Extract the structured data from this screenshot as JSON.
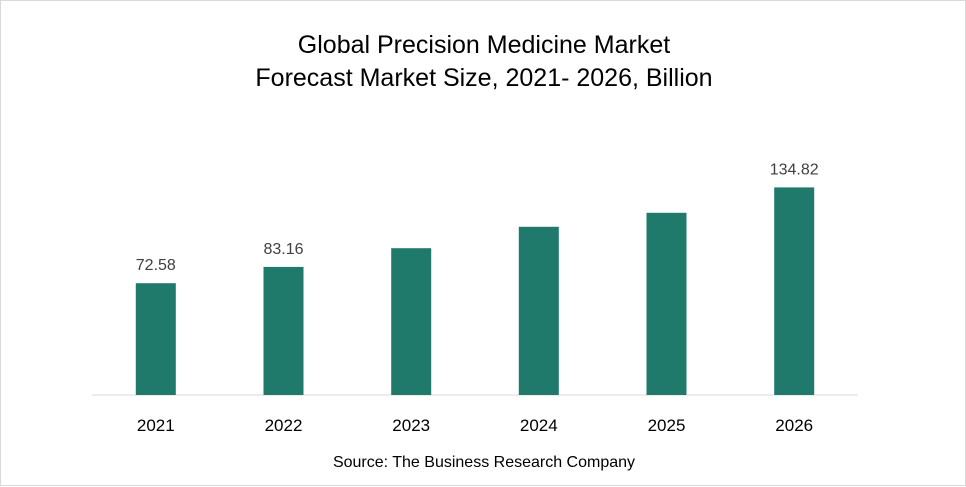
{
  "chart_data": {
    "type": "bar",
    "title": "Global Precision Medicine Market",
    "subtitle": "Forecast Market Size, 2021- 2026, Billion",
    "xlabel": "",
    "ylabel": "",
    "categories": [
      "2021",
      "2022",
      "2023",
      "2024",
      "2025",
      "2026"
    ],
    "values": [
      72.58,
      83.16,
      95.3,
      109.2,
      118.3,
      134.82
    ],
    "data_labels": [
      "72.58",
      "83.16",
      "",
      "",
      "",
      "134.82"
    ],
    "ylim": [
      0,
      150
    ],
    "grid": false,
    "legend": "none",
    "bar_color": "#1f7a6b"
  },
  "source": "Source: The Business Research Company"
}
